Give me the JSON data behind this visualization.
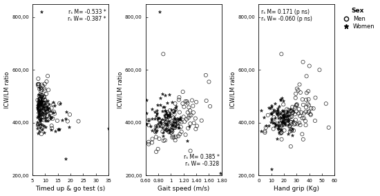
{
  "panel1": {
    "xlabel": "Timed up & go test (s)",
    "xlim": [
      5,
      35
    ],
    "xticks": [
      5,
      10,
      15,
      20,
      25,
      30,
      35
    ],
    "annotation_bold": "rₛ M= -0.533 *\nrₛ W= -0.387 *",
    "annot_loc": "upper right"
  },
  "panel2": {
    "xlabel": "Gait speed (m/s)",
    "xlim": [
      0.6,
      1.8
    ],
    "xticks": [
      0.6,
      0.8,
      1.0,
      1.2,
      1.4,
      1.6,
      1.8
    ],
    "annotation_bold": "rₛ M= 0.385 *\nrₛ W= -0.328",
    "annot_loc": "lower right"
  },
  "panel3": {
    "xlabel": "Hand grip (Kg)",
    "xlim": [
      0,
      60
    ],
    "xticks": [
      0,
      10,
      20,
      30,
      40,
      50,
      60
    ],
    "annotation_bold": "rₛ M= 0.171 (p ns)\nrₛ W= -0.060 (p ns)",
    "annot_loc": "upper left"
  },
  "ylabel": "ICW/LM ratio",
  "ylim": [
    200,
    850
  ],
  "yticks": [
    200,
    400,
    600,
    800
  ],
  "ytick_labels": [
    "200,00",
    "400,00",
    "600,00",
    "800,00"
  ],
  "background_color": "#ffffff",
  "marker_color": "#000000",
  "legend_title": "Sex",
  "legend_men": "Men",
  "legend_women": "Women"
}
